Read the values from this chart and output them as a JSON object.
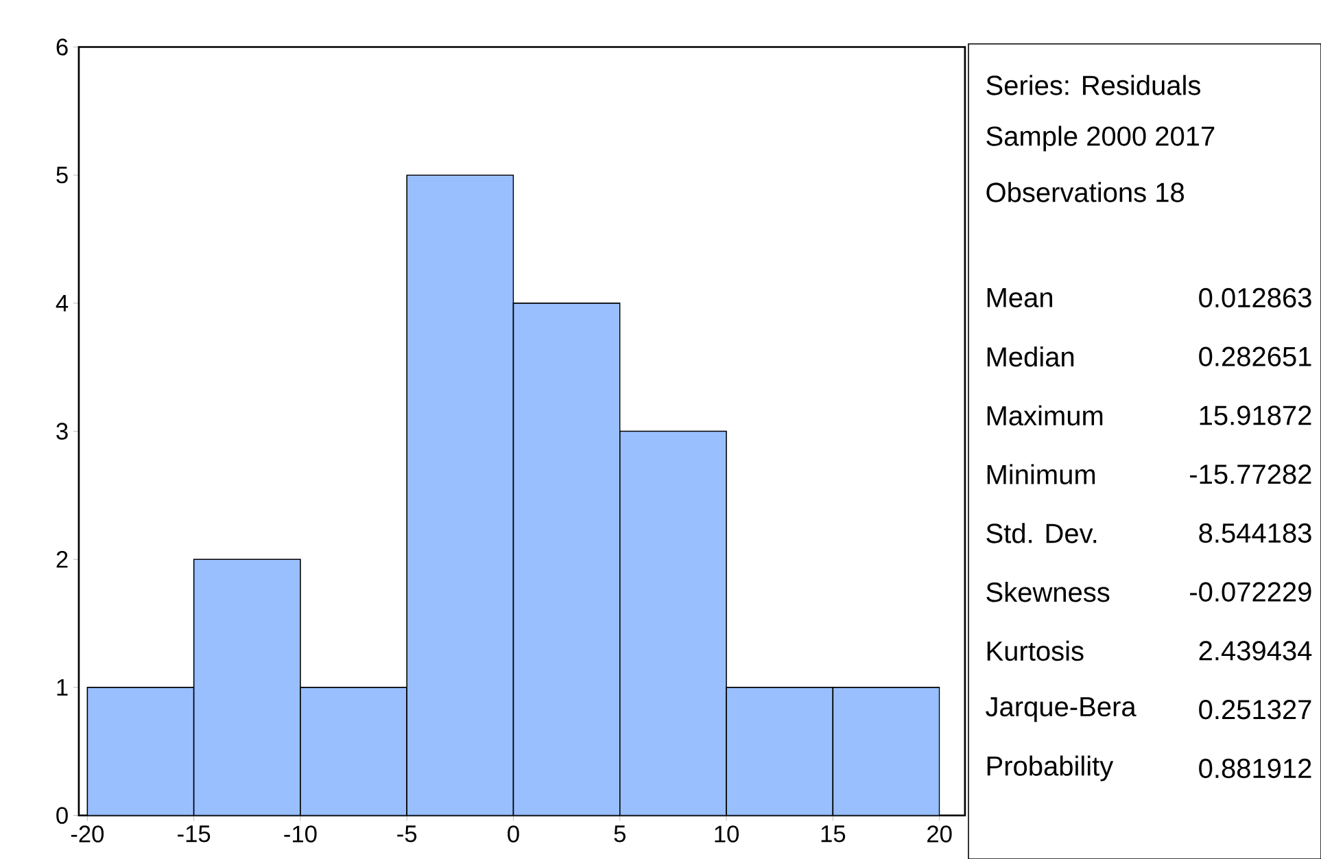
{
  "chart_data": [
    {
      "type": "histogram",
      "bins": [
        -20,
        -15,
        -10,
        -5,
        0,
        5,
        10,
        15,
        20
      ],
      "values": [
        1,
        2,
        1,
        5,
        4,
        3,
        1,
        1
      ],
      "color": "#99bfff",
      "xlim": [
        -20.4,
        21.2
      ],
      "ylim": [
        0,
        6
      ],
      "xticks": [
        -20,
        -15,
        -10,
        -5,
        0,
        5,
        10,
        15,
        20
      ],
      "yticks": [
        0,
        1,
        2,
        3,
        4,
        5,
        6
      ],
      "grid": false
    },
    {
      "type": "other",
      "annotations": [
        "Series: Residuals",
        "Sample 2000 2017",
        "Observations 18"
      ],
      "categories": [
        "Mean",
        "Median",
        "Maximum",
        "Minimum",
        "Std. Dev.",
        "Skewness",
        "Kurtosis",
        "Jarque-Bera",
        "Probability"
      ],
      "values": [
        0.012863,
        0.282651,
        15.91872,
        -15.77282,
        8.544183,
        -0.072229,
        2.439434,
        0.251327,
        0.881912
      ],
      "data_labels": true
    }
  ]
}
